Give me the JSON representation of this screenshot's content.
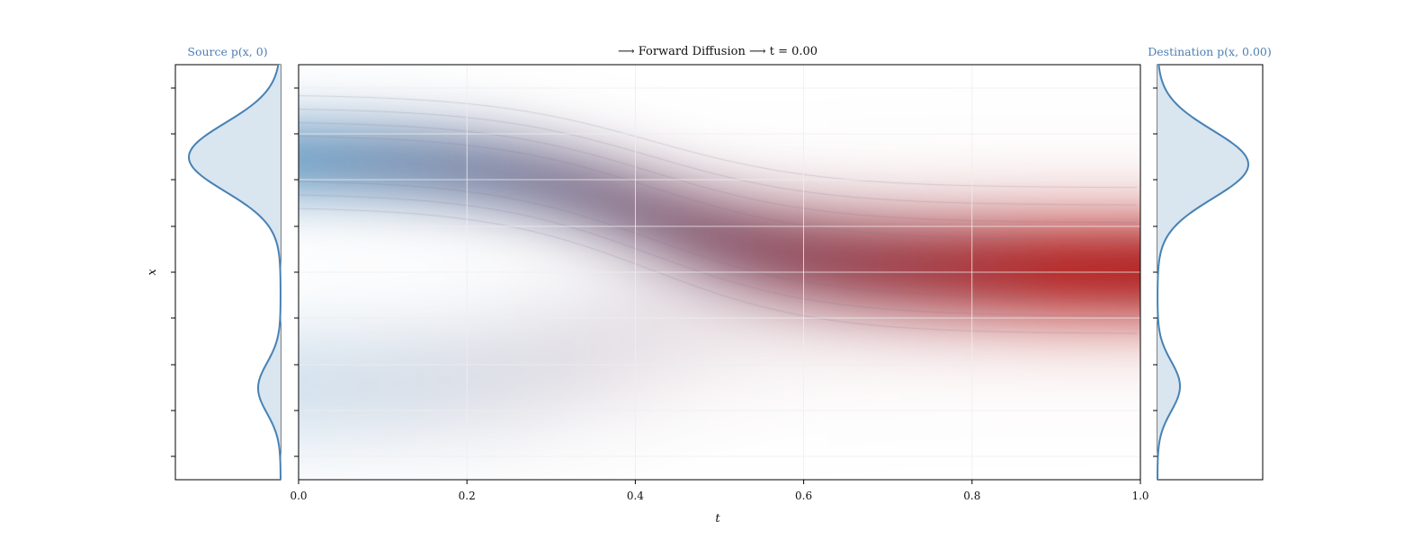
{
  "chart_data": {
    "type": "heatmap",
    "title": "⟶ Forward Diffusion ⟶ t = 0.00",
    "xlabel": "t",
    "ylabel": "x",
    "xlim": [
      0,
      1
    ],
    "x_ticks": [
      "0.0",
      "0.2",
      "0.4",
      "0.6",
      "0.8",
      "1.0"
    ],
    "y_tick_labels_shown": false,
    "grid": true,
    "colors": {
      "source": "#4682b4",
      "destination": "#b22222",
      "density_line": "#4682b4",
      "density_fill": "#d9e5ef",
      "side_title": "#4a7fb5"
    },
    "left_panel": {
      "title": "Source p(x, 0)",
      "type": "density",
      "shape": "bimodal: large mode upper, small mode lower"
    },
    "right_panel": {
      "title": "Destination p(x, 0.00)",
      "type": "density",
      "shape": "bimodal: large mode upper, small mode lower"
    }
  }
}
